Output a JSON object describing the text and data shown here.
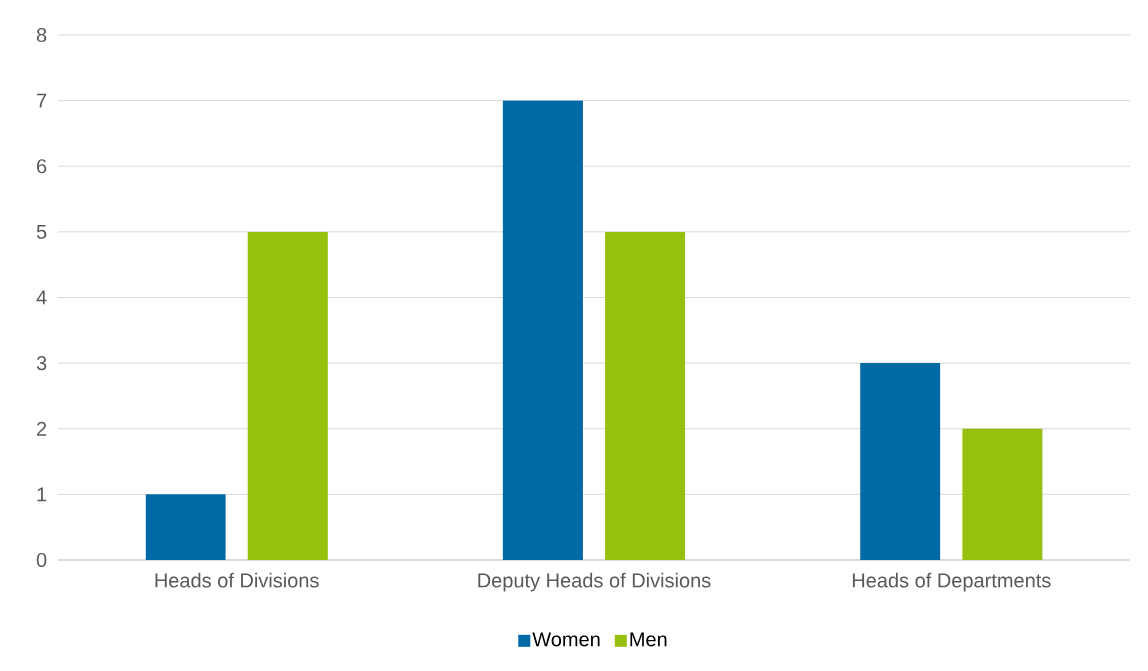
{
  "chart_data": {
    "type": "bar",
    "categories": [
      "Heads of Divisions",
      "Deputy Heads of Divisions",
      "Heads of Departments"
    ],
    "series": [
      {
        "name": "Women",
        "color": "#006aa6",
        "values": [
          1,
          7,
          3
        ]
      },
      {
        "name": "Men",
        "color": "#97c00e",
        "values": [
          5,
          5,
          2
        ]
      }
    ],
    "ylim": [
      0,
      8
    ],
    "yticks": [
      0,
      1,
      2,
      3,
      4,
      5,
      6,
      7,
      8
    ],
    "grid": "y",
    "legend": "bottom"
  }
}
